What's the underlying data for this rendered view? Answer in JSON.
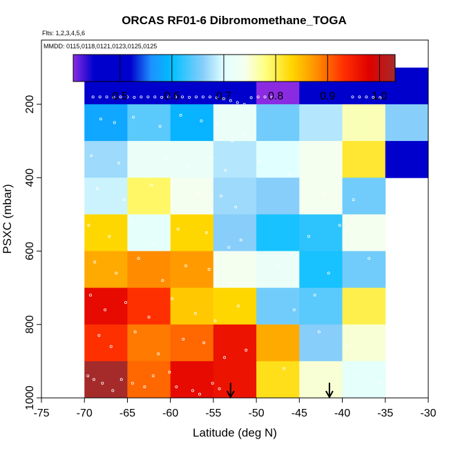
{
  "chart_data": {
    "type": "heatmap",
    "title": "ORCAS RF01-6 Dibromomethane_TOGA",
    "flights_note": "Flts: 1,2,3,4,5,6",
    "dates_note": "MMDD: 0115,0118,0121,0123,0125,0125",
    "xlabel": "Latitude (deg N)",
    "ylabel": "PSXC (mbar)",
    "xlim": [
      -75,
      -30
    ],
    "ylim": [
      1000,
      25
    ],
    "x_ticks": [
      "-75",
      "-70",
      "-65",
      "-60",
      "-55",
      "-50",
      "-45",
      "-40",
      "-35",
      "-30"
    ],
    "x_tick_values": [
      -75,
      -70,
      -65,
      -60,
      -55,
      -50,
      -45,
      -40,
      -35,
      -30
    ],
    "y_ticks": [
      "200",
      "400",
      "600",
      "800",
      "1000"
    ],
    "y_tick_values": [
      200,
      400,
      600,
      800,
      1000
    ],
    "colorbar": {
      "range": [
        0.41,
        1.03
      ],
      "ticks": [
        "0.5",
        "0.6",
        "0.7",
        "0.8",
        "0.9",
        "1.0"
      ],
      "tick_values": [
        0.5,
        0.6,
        0.7,
        0.8,
        0.9,
        1.0
      ],
      "stops": [
        {
          "v": 0.41,
          "c": "#8a2be2"
        },
        {
          "v": 0.45,
          "c": "#0000cd"
        },
        {
          "v": 0.52,
          "c": "#0000cd"
        },
        {
          "v": 0.56,
          "c": "#1e90ff"
        },
        {
          "v": 0.6,
          "c": "#00bfff"
        },
        {
          "v": 0.66,
          "c": "#87cefa"
        },
        {
          "v": 0.7,
          "c": "#e0ffff"
        },
        {
          "v": 0.74,
          "c": "#f5fff0"
        },
        {
          "v": 0.78,
          "c": "#ffff80"
        },
        {
          "v": 0.83,
          "c": "#ffd700"
        },
        {
          "v": 0.88,
          "c": "#ff8c00"
        },
        {
          "v": 0.93,
          "c": "#ff3000"
        },
        {
          "v": 0.98,
          "c": "#e00000"
        },
        {
          "v": 1.03,
          "c": "#a52a2a"
        }
      ]
    },
    "lat_bins": [
      [
        -70,
        -65
      ],
      [
        -65,
        -60
      ],
      [
        -60,
        -55
      ],
      [
        -55,
        -50
      ],
      [
        -50,
        -45
      ],
      [
        -45,
        -40
      ],
      [
        -40,
        -35
      ],
      [
        -35,
        -30
      ]
    ],
    "pressure_bins": [
      [
        100,
        200
      ],
      [
        200,
        300
      ],
      [
        300,
        400
      ],
      [
        400,
        500
      ],
      [
        500,
        600
      ],
      [
        600,
        700
      ],
      [
        700,
        800
      ],
      [
        800,
        900
      ],
      [
        900,
        1000
      ]
    ],
    "values": [
      [
        0.49,
        0.49,
        0.51,
        0.5,
        0.41,
        0.49,
        0.49,
        0.49
      ],
      [
        0.58,
        0.64,
        0.59,
        0.72,
        0.65,
        0.68,
        0.76,
        0.66
      ],
      [
        0.67,
        0.72,
        0.72,
        0.68,
        0.7,
        0.74,
        0.81,
        0.52
      ],
      [
        0.69,
        0.79,
        0.74,
        0.67,
        0.66,
        0.74,
        0.65,
        null
      ],
      [
        0.83,
        0.71,
        0.83,
        0.66,
        0.61,
        0.62,
        0.74,
        null
      ],
      [
        0.86,
        0.88,
        0.87,
        0.74,
        0.72,
        0.61,
        0.65,
        null
      ],
      [
        0.97,
        0.93,
        0.84,
        0.83,
        0.65,
        0.64,
        0.8,
        null
      ],
      [
        0.93,
        0.89,
        0.9,
        0.96,
        0.86,
        0.66,
        0.75,
        null
      ],
      [
        1.03,
        0.9,
        0.97,
        0.96,
        0.82,
        0.75,
        0.71,
        null
      ]
    ],
    "arrows_lat": [
      -53,
      -41.5
    ],
    "series": [
      {
        "name": "flight-track-samples",
        "x": [
          -69.0,
          -68.2,
          -67.4,
          -66.6,
          -65.8,
          -65.0,
          -64.2,
          -63.4,
          -62.6,
          -61.8,
          -61.0,
          -60.2,
          -59.4,
          -58.6,
          -57.8,
          -57.0,
          -56.2,
          -55.4,
          -54.6,
          -53.8,
          -53.0,
          -52.2,
          -51.4,
          -50.6,
          -49.8,
          -49.0,
          -48.2,
          -38.8,
          -38.0,
          -37.2,
          -36.4,
          -35.6,
          -68.1,
          -66.5,
          -64.3,
          -61.2,
          -58.8,
          -56.4,
          -54.5,
          -52.8,
          -51.5,
          -69.2,
          -66.0,
          -63.1,
          -60.5,
          -57.9,
          -55.2,
          -53.6,
          -49.6,
          -46.2,
          -68.5,
          -65.4,
          -62.2,
          -59.7,
          -56.8,
          -54.1,
          -52.4,
          -44.8,
          -42.1,
          -38.7,
          -69.5,
          -67.1,
          -64.6,
          -61.9,
          -59.1,
          -55.8,
          -53.2,
          -51.8,
          -43.9,
          -40.3,
          -68.8,
          -66.3,
          -63.7,
          -60.9,
          -58.2,
          -55.5,
          -52.9,
          -47.5,
          -41.6,
          -36.9,
          -69.3,
          -67.6,
          -65.2,
          -62.5,
          -59.8,
          -57.1,
          -54.8,
          -52.1,
          -45.6,
          -43.2,
          -68.3,
          -66.9,
          -64.1,
          -61.4,
          -58.5,
          -56.1,
          -53.7,
          -51.2,
          -42.7,
          -39.4,
          -69.6,
          -67.9,
          -65.7,
          -63.0,
          -60.1,
          -57.4,
          -55.1,
          -46.8,
          -38.2,
          -35.5,
          -68.9,
          -66.7,
          -64.4,
          -62.0,
          -59.3,
          -56.6,
          -54.3
        ],
        "y": [
          180,
          180,
          180,
          181,
          180,
          180,
          181,
          180,
          180,
          180,
          181,
          180,
          180,
          180,
          181,
          180,
          180,
          180,
          182,
          185,
          190,
          195,
          200,
          182,
          180,
          180,
          181,
          180,
          180,
          180,
          181,
          182,
          240,
          250,
          235,
          260,
          230,
          245,
          255,
          300,
          280,
          340,
          360,
          330,
          350,
          370,
          345,
          380,
          355,
          390,
          430,
          460,
          420,
          470,
          440,
          450,
          480,
          470,
          440,
          460,
          530,
          560,
          520,
          580,
          540,
          550,
          590,
          570,
          560,
          530,
          630,
          660,
          620,
          680,
          640,
          650,
          690,
          640,
          660,
          620,
          720,
          760,
          740,
          780,
          730,
          770,
          790,
          750,
          760,
          720,
          830,
          860,
          820,
          880,
          840,
          850,
          890,
          870,
          820,
          860,
          940,
          960,
          950,
          970,
          930,
          980,
          960,
          920,
          940,
          960,
          950,
          980,
          960,
          940,
          970,
          990,
          975
        ]
      }
    ]
  }
}
